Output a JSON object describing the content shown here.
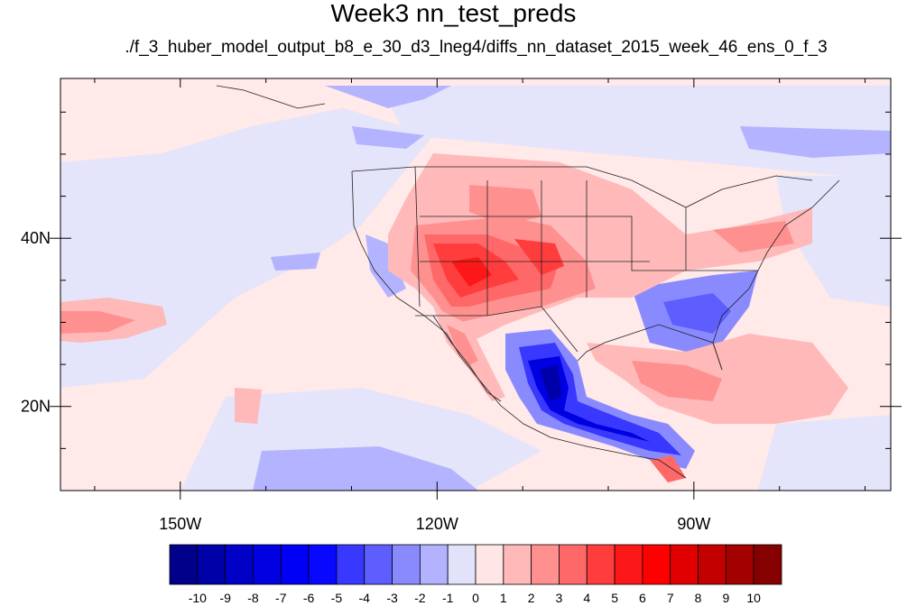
{
  "title": "Week3 nn_test_preds",
  "subtitle": "./f_3_huber_model_output_b8_e_30_d3_lneg4/diffs_nn_dataset_2015_week_46_ens_0_f_3",
  "map": {
    "lon_range": [
      -164,
      -67
    ],
    "lat_range": [
      10,
      59
    ],
    "lon_ticks": [
      {
        "value": -150,
        "label": "150W"
      },
      {
        "value": -120,
        "label": "120W"
      },
      {
        "value": -90,
        "label": "90W"
      }
    ],
    "lat_ticks": [
      {
        "value": 40,
        "label": "40N"
      },
      {
        "value": 20,
        "label": "20N"
      }
    ]
  },
  "colorbar": {
    "colors": [
      "#00008a",
      "#0000a8",
      "#0000c6",
      "#0000e0",
      "#0000f7",
      "#0808ff",
      "#3838ff",
      "#5e5eff",
      "#8a8aff",
      "#b2b2ff",
      "#e2e2fb",
      "#ffe6e6",
      "#ffb9b9",
      "#ff9090",
      "#ff6868",
      "#ff3d3d",
      "#fc1818",
      "#ff0000",
      "#e00000",
      "#c20000",
      "#a30000",
      "#850000"
    ],
    "labels": [
      "-10",
      "-9",
      "-8",
      "-7",
      "-6",
      "-5",
      "-4",
      "-3",
      "-2",
      "-1",
      "0",
      "1",
      "2",
      "3",
      "4",
      "5",
      "6",
      "7",
      "8",
      "9",
      "10"
    ]
  }
}
